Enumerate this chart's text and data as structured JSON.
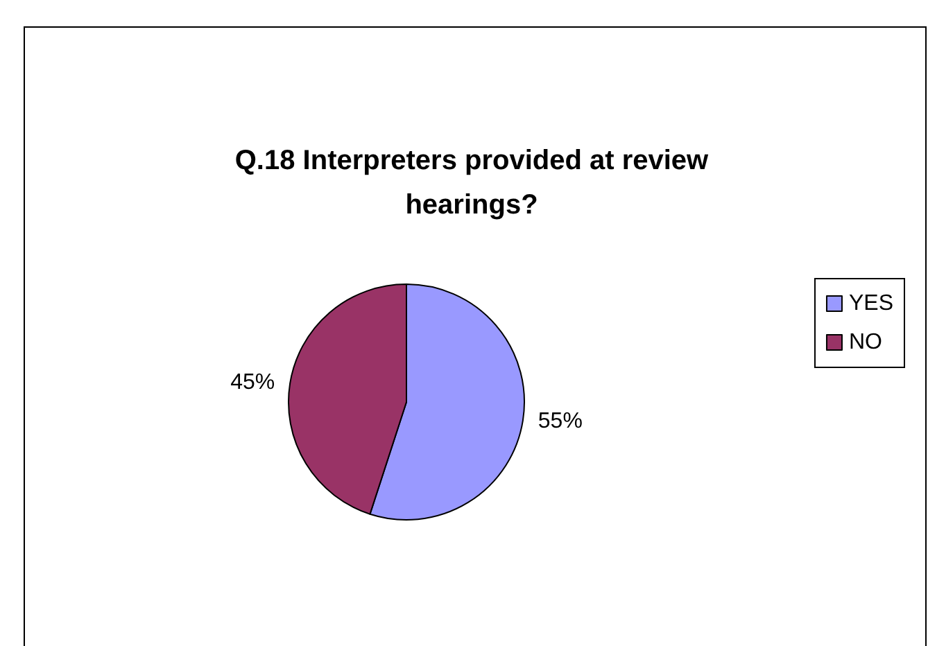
{
  "chart_data": {
    "type": "pie",
    "title": "Q.18 Interpreters provided at review\nhearings?",
    "categories": [
      "YES",
      "NO"
    ],
    "values": [
      55,
      45
    ],
    "value_labels": [
      "55%",
      "45%"
    ],
    "colors": [
      "#9999ff",
      "#993366"
    ],
    "legend": "right"
  }
}
